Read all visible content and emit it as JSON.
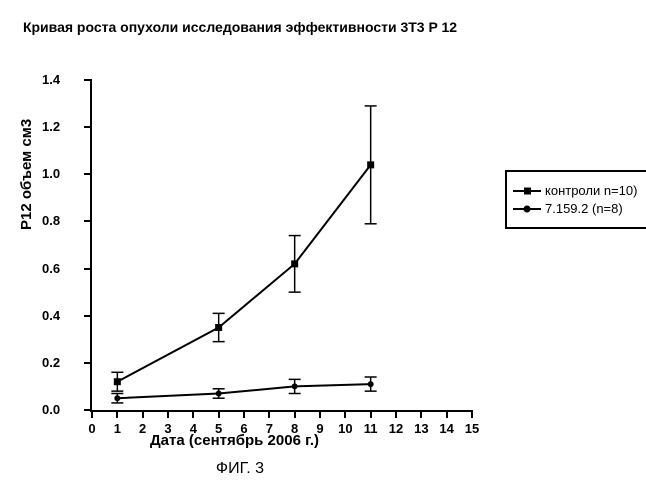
{
  "title": "Кривая роста опухоли исследования\nэффективности 3T3 P 12",
  "caption": "ФИГ. 3",
  "xaxis": {
    "title": "Дата (сентябрь 2006 г.)",
    "min": 0,
    "max": 15,
    "ticks": [
      0,
      1,
      2,
      3,
      4,
      5,
      6,
      7,
      8,
      9,
      10,
      11,
      12,
      13,
      14,
      15
    ]
  },
  "yaxis": {
    "title": "P12 объем см3",
    "min": 0.0,
    "max": 1.4,
    "ticks": [
      0.0,
      0.2,
      0.4,
      0.6,
      0.8,
      1.0,
      1.2,
      1.4
    ],
    "labels": [
      "0.0",
      "0.2",
      "0.4",
      "0.6",
      "0.8",
      "1.0",
      "1.2",
      "1.4"
    ]
  },
  "series": {
    "control": {
      "label": "контроли n=10)",
      "marker": "square",
      "marker_size": 7,
      "color": "#000000",
      "line_width": 2,
      "points": [
        {
          "x": 1,
          "y": 0.12,
          "err": 0.04
        },
        {
          "x": 5,
          "y": 0.35,
          "err": 0.06
        },
        {
          "x": 8,
          "y": 0.62,
          "err": 0.12
        },
        {
          "x": 11,
          "y": 1.04,
          "err": 0.25
        }
      ]
    },
    "treated": {
      "label": "7.159.2 (n=8)",
      "marker": "circle",
      "marker_size": 6,
      "color": "#000000",
      "line_width": 2,
      "points": [
        {
          "x": 1,
          "y": 0.05,
          "err": 0.02
        },
        {
          "x": 5,
          "y": 0.07,
          "err": 0.02
        },
        {
          "x": 8,
          "y": 0.1,
          "err": 0.03
        },
        {
          "x": 11,
          "y": 0.11,
          "err": 0.03
        }
      ]
    }
  },
  "plot_style": {
    "background": "#ffffff",
    "axis_color": "#000000",
    "tick_font_size": 13,
    "cap_width": 6
  }
}
